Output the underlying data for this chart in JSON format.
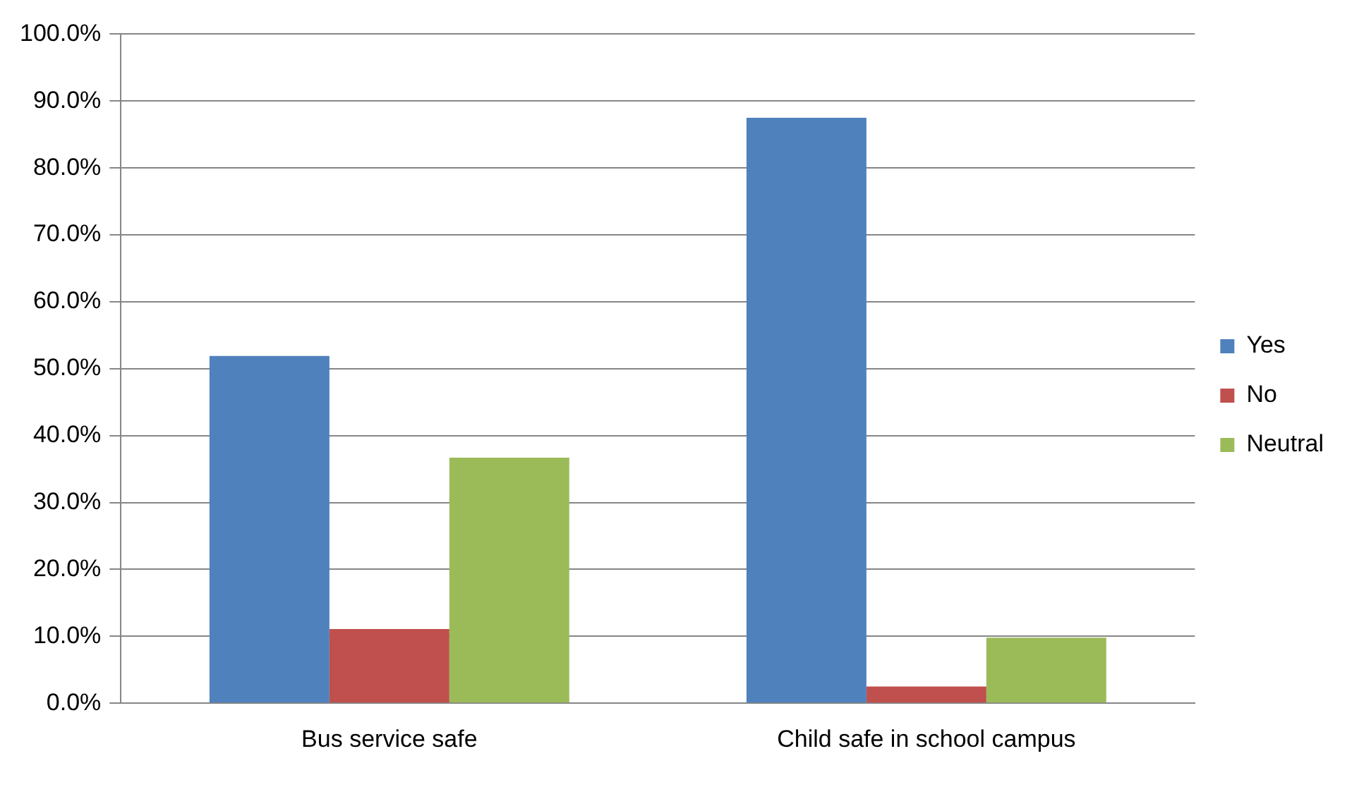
{
  "chart_data": {
    "type": "bar",
    "categories": [
      "Bus service safe",
      "Child safe in school campus"
    ],
    "series": [
      {
        "name": "Yes",
        "color": "#4f81bd",
        "values": [
          51.9,
          87.5
        ]
      },
      {
        "name": "No",
        "color": "#c0504d",
        "values": [
          11.1,
          2.5
        ]
      },
      {
        "name": "Neutral",
        "color": "#9bbb59",
        "values": [
          36.7,
          9.8
        ]
      }
    ],
    "ylim": [
      0,
      100
    ],
    "yticks": [
      {
        "value": 0,
        "label": "0.0%"
      },
      {
        "value": 10,
        "label": "10.0%"
      },
      {
        "value": 20,
        "label": "20.0%"
      },
      {
        "value": 30,
        "label": "30.0%"
      },
      {
        "value": 40,
        "label": "40.0%"
      },
      {
        "value": 50,
        "label": "50.0%"
      },
      {
        "value": 60,
        "label": "60.0%"
      },
      {
        "value": 70,
        "label": "70.0%"
      },
      {
        "value": 80,
        "label": "80.0%"
      },
      {
        "value": 90,
        "label": "90.0%"
      },
      {
        "value": 100,
        "label": "100.0%"
      }
    ],
    "grid": "y",
    "legend": "right"
  }
}
